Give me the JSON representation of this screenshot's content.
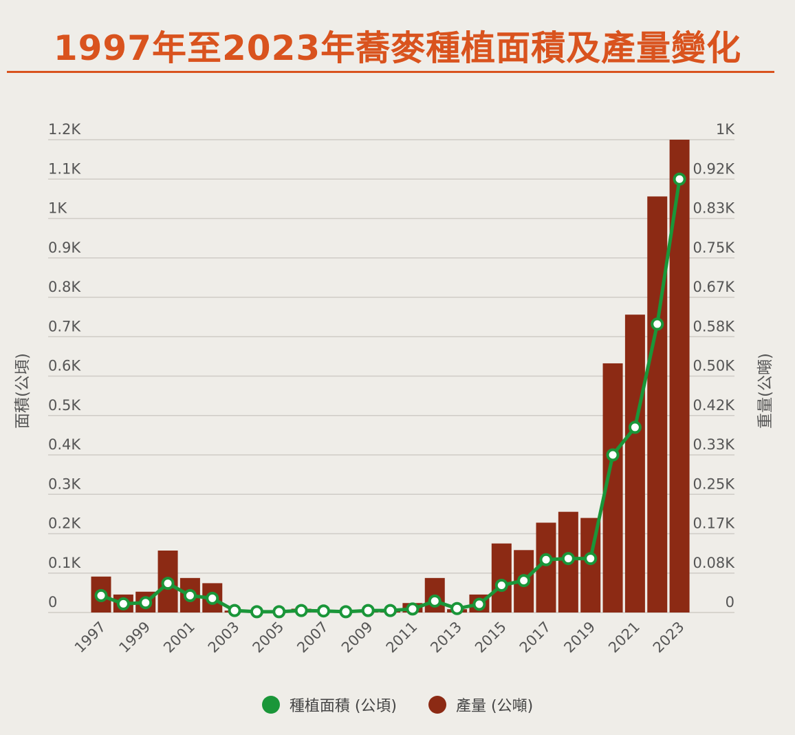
{
  "title": "1997年至2023年蕎麥種植面積及產量變化",
  "colors": {
    "title": "#d9531e",
    "area_line": "#1a9639",
    "production_bar": "#8c2a14",
    "grid": "#cfccc6"
  },
  "legend": {
    "area": "種植面積 (公頃)",
    "production": "產量 (公噸)"
  },
  "chart_data": {
    "type": "bar+line",
    "title": "1997年至2023年蕎麥種植面積及產量變化",
    "x": [
      "1997",
      "1998",
      "1999",
      "2000",
      "2001",
      "2002",
      "2003",
      "2004",
      "2005",
      "2006",
      "2007",
      "2008",
      "2009",
      "2010",
      "2011",
      "2012",
      "2013",
      "2014",
      "2015",
      "2016",
      "2017",
      "2018",
      "2019",
      "2020",
      "2021",
      "2022",
      "2023"
    ],
    "x_tick_labels": [
      "1997",
      "1999",
      "2001",
      "2003",
      "2005",
      "2007",
      "2009",
      "2011",
      "2013",
      "2015",
      "2017",
      "2019",
      "2021",
      "2023"
    ],
    "left_axis": {
      "label": "面積(公頃)",
      "ylim": [
        0,
        1200
      ],
      "ticks": [
        "0",
        "0.1K",
        "0.2K",
        "0.3K",
        "0.4K",
        "0.5K",
        "0.6K",
        "0.7K",
        "0.8K",
        "0.9K",
        "1K",
        "1.1K",
        "1.2K"
      ]
    },
    "right_axis": {
      "label": "重量(公噸)",
      "ylim": [
        0,
        1000
      ],
      "ticks": [
        "0",
        "0.08K",
        "0.17K",
        "0.25K",
        "0.33K",
        "0.42K",
        "0.50K",
        "0.58K",
        "0.67K",
        "0.75K",
        "0.83K",
        "0.92K",
        "1K"
      ]
    },
    "series": [
      {
        "name": "種植面積 (公頃)",
        "type": "line",
        "axis": "left",
        "values": [
          43,
          22,
          25,
          74,
          43,
          36,
          5,
          2,
          2,
          5,
          4,
          2,
          5,
          5,
          9,
          29,
          10,
          21,
          69,
          81,
          134,
          137,
          137,
          400,
          470,
          732,
          1100
        ]
      },
      {
        "name": "產量 (公噸)",
        "type": "bar",
        "axis": "right",
        "values": [
          76,
          38,
          44,
          131,
          73,
          62,
          4,
          2,
          2,
          8,
          5,
          3,
          6,
          6,
          20,
          73,
          7,
          38,
          146,
          132,
          190,
          213,
          200,
          527,
          630,
          880,
          1000
        ]
      }
    ],
    "legend_position": "bottom-center",
    "grid": true
  }
}
